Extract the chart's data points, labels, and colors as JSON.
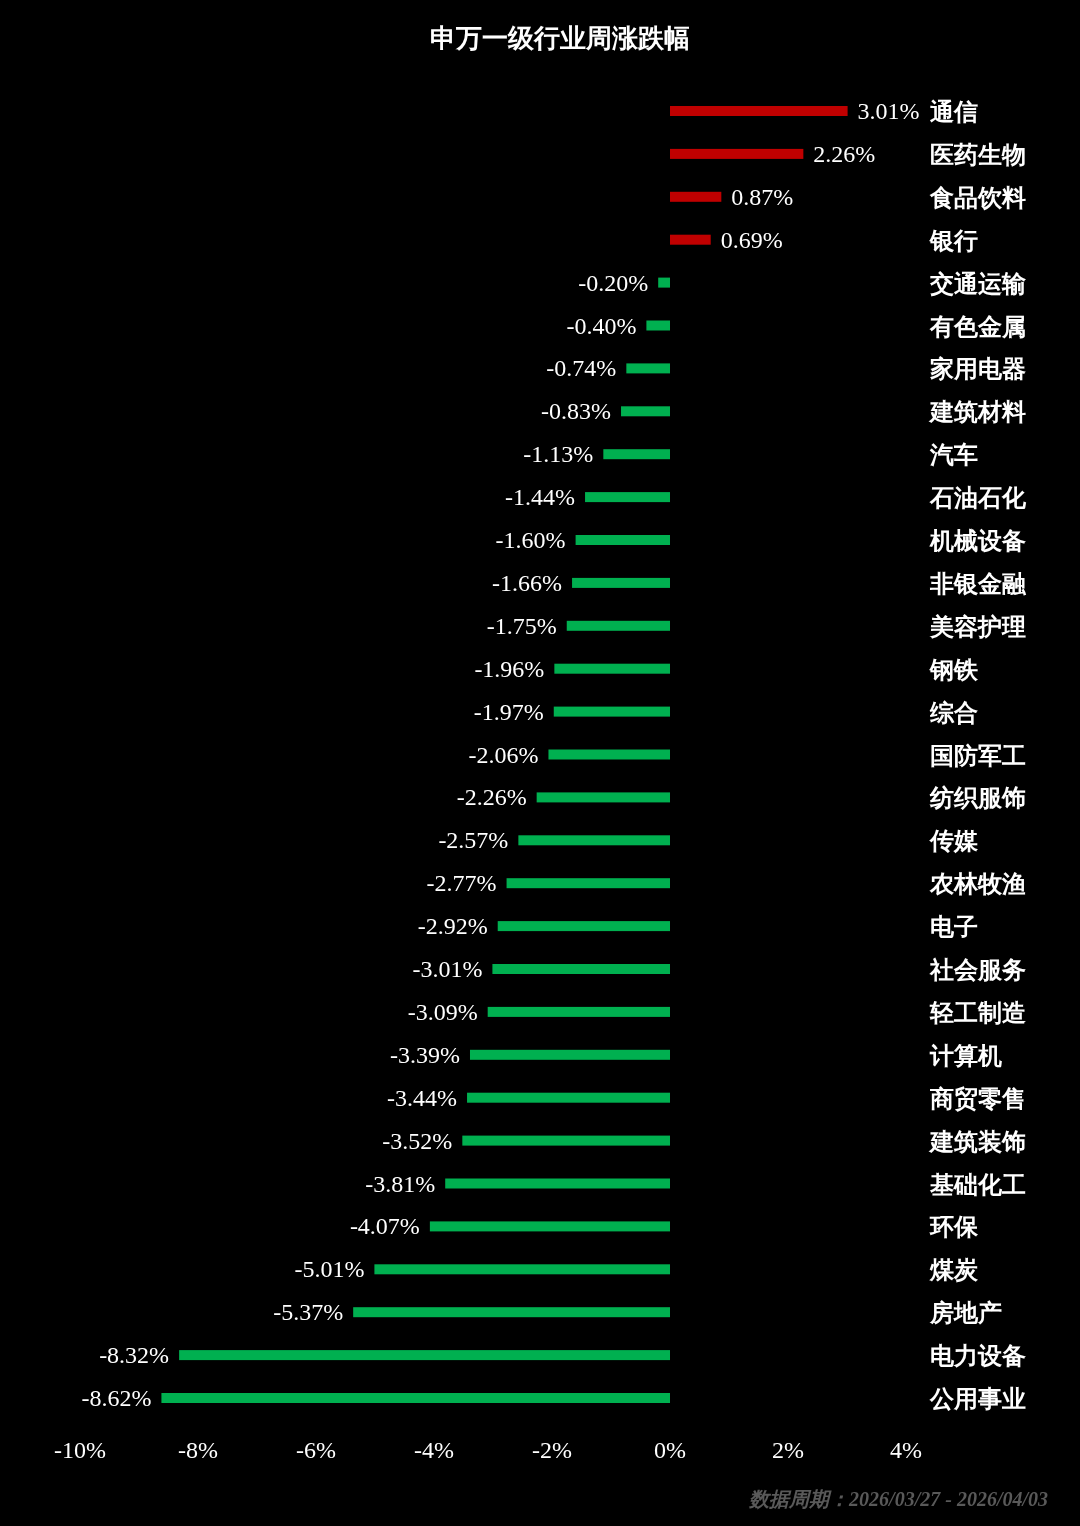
{
  "chart_data": {
    "type": "bar",
    "orientation": "horizontal",
    "title": "申万一级行业周涨跌幅",
    "categories": [
      "通信",
      "医药生物",
      "食品饮料",
      "银行",
      "交通运输",
      "有色金属",
      "家用电器",
      "建筑材料",
      "汽车",
      "石油石化",
      "机械设备",
      "非银金融",
      "美容护理",
      "钢铁",
      "综合",
      "国防军工",
      "纺织服饰",
      "传媒",
      "农林牧渔",
      "电子",
      "社会服务",
      "轻工制造",
      "计算机",
      "商贸零售",
      "建筑装饰",
      "基础化工",
      "环保",
      "煤炭",
      "房地产",
      "电力设备",
      "公用事业"
    ],
    "values": [
      3.01,
      2.26,
      0.87,
      0.69,
      -0.2,
      -0.4,
      -0.74,
      -0.83,
      -1.13,
      -1.44,
      -1.6,
      -1.66,
      -1.75,
      -1.96,
      -1.97,
      -2.06,
      -2.26,
      -2.57,
      -2.77,
      -2.92,
      -3.01,
      -3.09,
      -3.39,
      -3.44,
      -3.52,
      -3.81,
      -4.07,
      -5.01,
      -5.37,
      -8.32,
      -8.62
    ],
    "colors": [
      "#c00000",
      "#c00000",
      "#c00000",
      "#c00000",
      "#00b050",
      "#00b050",
      "#00b050",
      "#00b050",
      "#00b050",
      "#00b050",
      "#00b050",
      "#00b050",
      "#00b050",
      "#00b050",
      "#00b050",
      "#00b050",
      "#00b050",
      "#00b050",
      "#00b050",
      "#00b050",
      "#00b050",
      "#00b050",
      "#00b050",
      "#00b050",
      "#00b050",
      "#00b050",
      "#00b050",
      "#00b050",
      "#00b050",
      "#00b050",
      "#00b050"
    ],
    "value_labels": [
      "3.01%",
      "2.26%",
      "0.87%",
      "0.69%",
      "-0.20%",
      "-0.40%",
      "-0.74%",
      "-0.83%",
      "-1.13%",
      "-1.44%",
      "-1.60%",
      "-1.66%",
      "-1.75%",
      "-1.96%",
      "-1.97%",
      "-2.06%",
      "-2.26%",
      "-2.57%",
      "-2.77%",
      "-2.92%",
      "-3.01%",
      "-3.09%",
      "-3.39%",
      "-3.44%",
      "-3.52%",
      "-3.81%",
      "-4.07%",
      "-5.01%",
      "-5.37%",
      "-8.32%",
      "-8.62%"
    ],
    "xlim": [
      -10,
      4
    ],
    "xticks": [
      {
        "value": -10,
        "label": "-10%"
      },
      {
        "value": -8,
        "label": "-8%"
      },
      {
        "value": -6,
        "label": "-6%"
      },
      {
        "value": -4,
        "label": "-4%"
      },
      {
        "value": -2,
        "label": "-2%"
      },
      {
        "value": 0,
        "label": "0%"
      },
      {
        "value": 2,
        "label": "2%"
      },
      {
        "value": 4,
        "label": "4%"
      }
    ],
    "annotations": [
      "数据周期：2026/03/27 - 2026/04/03"
    ]
  }
}
